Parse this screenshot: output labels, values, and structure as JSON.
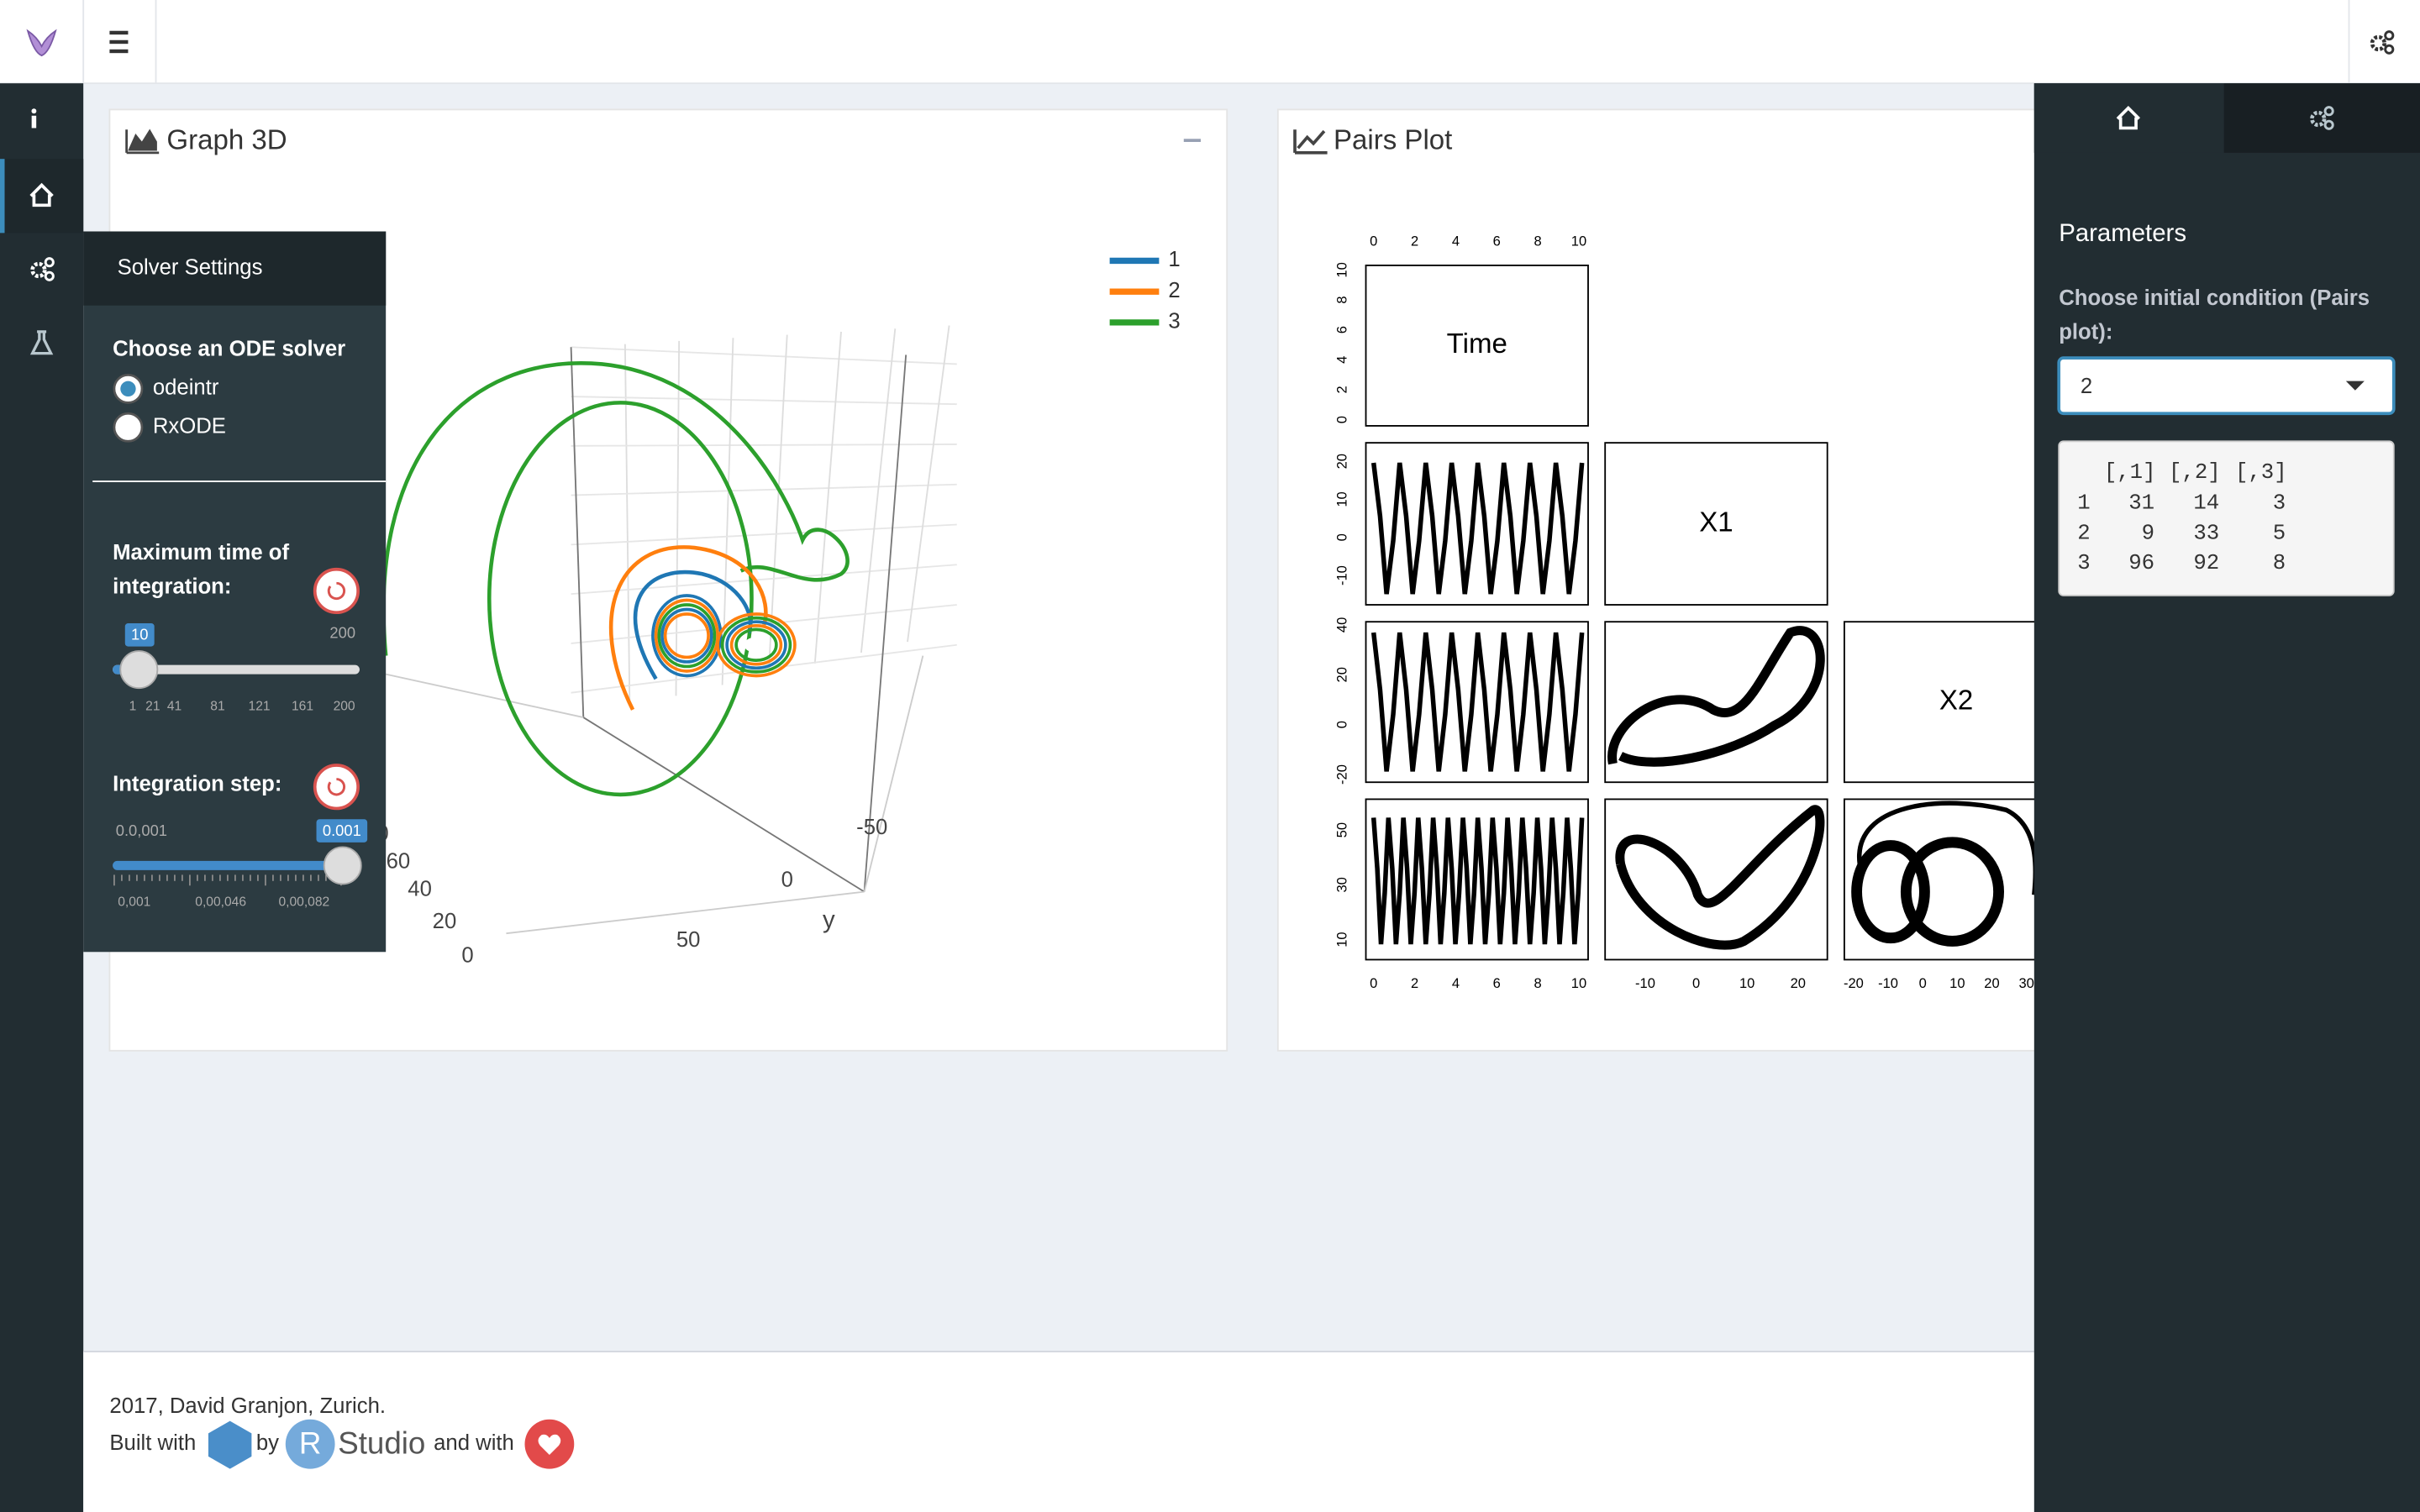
{
  "graph3d": {
    "title": "Graph 3D",
    "legend": [
      "1",
      "2",
      "3"
    ],
    "x_ticks": [
      "0",
      "60",
      "40",
      "20",
      "0"
    ],
    "y_ticks": [
      "-50",
      "0",
      "50"
    ],
    "y_label": "y"
  },
  "solver_settings": {
    "title": "Solver Settings",
    "solver_label": "Choose an ODE solver",
    "options": [
      "odeintr",
      "RxODE"
    ],
    "selected": "odeintr",
    "max_time_label": [
      "Maximum time of",
      "integration:"
    ],
    "max_time_value": "10",
    "max_time_max": "200",
    "max_time_ticks": [
      "1",
      "21",
      "41",
      "81",
      "121",
      "161",
      "200"
    ],
    "step_label": "Integration step:",
    "step_min": "0.0,001",
    "step_value": "0.001",
    "step_ticks": [
      "0,001",
      "0,00,046",
      "0,00,082"
    ]
  },
  "pairs_plot": {
    "title": "Pairs Plot",
    "panels": [
      "Time",
      "X1",
      "X2"
    ],
    "top_ticks": [
      "0",
      "2",
      "4",
      "6",
      "8",
      "10"
    ],
    "left_ticks": [
      [
        "0",
        "2",
        "4",
        "6",
        "8",
        "10"
      ],
      [
        "-10",
        "0",
        "10",
        "20"
      ],
      [
        "-20",
        "0",
        "20",
        "40"
      ],
      [
        "10",
        "30",
        "50"
      ]
    ],
    "bottom_ticks": [
      [
        "0",
        "2",
        "4",
        "6",
        "8",
        "10"
      ],
      [
        "-10",
        "0",
        "10",
        "20"
      ],
      [
        "-20",
        "-10",
        "0",
        "10",
        "20",
        "30"
      ]
    ]
  },
  "right_panel": {
    "title": "Parameters",
    "select_label": [
      "Choose initial condition (Pairs",
      "plot):"
    ],
    "selected": "2",
    "table": {
      "header": [
        "[,1]",
        "[,2]",
        "[,3]"
      ],
      "rows": [
        [
          "1",
          "31",
          "14",
          "3"
        ],
        [
          "2",
          "9",
          "33",
          "5"
        ],
        [
          "3",
          "96",
          "92",
          "8"
        ]
      ]
    }
  },
  "footer": {
    "credit": "2017, David Granjon, Zurich.",
    "built_with": "Built with",
    "by": "by",
    "r": "R",
    "studio": "Studio",
    "and_with": "and with"
  }
}
